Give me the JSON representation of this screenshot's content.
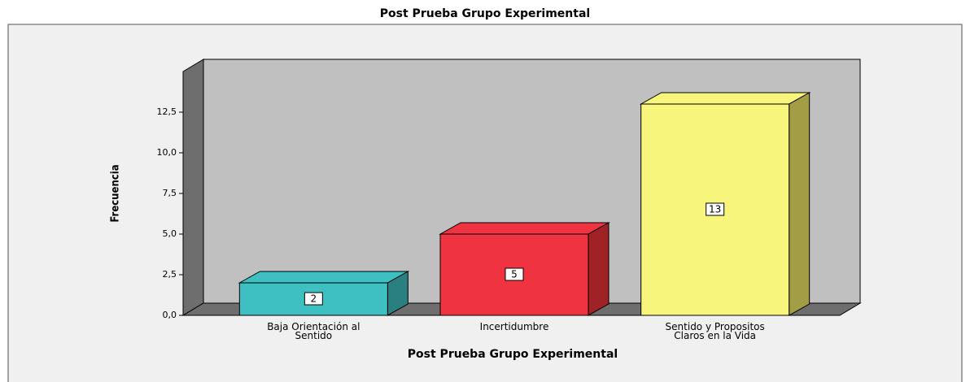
{
  "chart_data": {
    "type": "bar3d",
    "title": "Post Prueba Grupo Experimental",
    "x_label": "Post Prueba Grupo Experimental",
    "y_label": "Frecuencia",
    "categories": [
      "Baja Orientación al Sentido",
      "Incertidumbre",
      "Sentido y Propositos Claros en la Vida"
    ],
    "values": [
      2,
      5,
      13
    ],
    "colors": [
      "#3ec0c2",
      "#ef3340",
      "#f8f57c"
    ],
    "side_colors": [
      "#2a7f80",
      "#9e2226",
      "#a39e45"
    ],
    "ylim": [
      0,
      15
    ],
    "yticks": [
      {
        "value": 0,
        "label": "0,0"
      },
      {
        "value": 2.5,
        "label": "2,5"
      },
      {
        "value": 5,
        "label": "5,0"
      },
      {
        "value": 7.5,
        "label": "7,5"
      },
      {
        "value": 10,
        "label": "10,0"
      },
      {
        "value": 12.5,
        "label": "12,5"
      }
    ]
  }
}
